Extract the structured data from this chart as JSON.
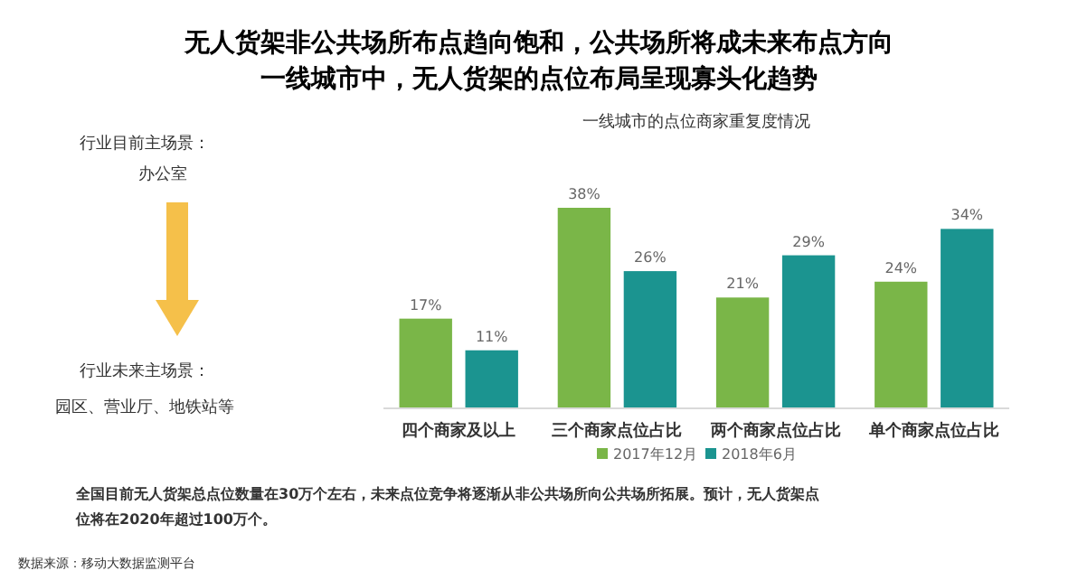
{
  "chart_data": {
    "type": "bar",
    "title": "无人货架非公共场所布点趋向饱和，公共场所将成未来布点方向",
    "subtitle": "一线城市中，无人货架的点位布局呈现寡头化趋势",
    "annotations": [
      "一线城市的点位商家重复度情况",
      "行业目前主场景：",
      "办公室",
      "行业未来主场景：",
      "园区、营业厅、地铁站等",
      "全国目前无人货架总点位数量在30万个左右，未来点位竞争将逐渐从非公共场所向公共场所拓展。预计，无人货架点位将在2020年超过100万个。",
      "数据来源：移动大数据监测平台"
    ],
    "categories": [
      "四个商家及以上",
      "三个商家点位占比",
      "两个商家点位占比",
      "单个商家点位占比"
    ],
    "series": [
      {
        "name": "2017年12月",
        "color": "#7ab648",
        "values": [
          17,
          38,
          21,
          24
        ],
        "value_labels": [
          "17%",
          "38%",
          "21%",
          "24%"
        ]
      },
      {
        "name": "2018年6月",
        "color": "#1b9490",
        "values": [
          11,
          26,
          29,
          34
        ],
        "value_labels": [
          "11%",
          "26%",
          "29%",
          "34%"
        ]
      }
    ],
    "legend": "bottom"
  }
}
